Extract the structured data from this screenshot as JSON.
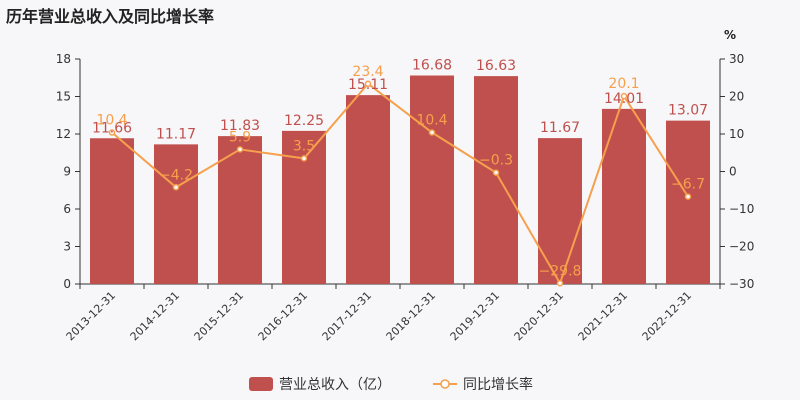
{
  "header": {
    "title": "历年营业总收入及同比增长率"
  },
  "colors": {
    "bar": "#c0504d",
    "line": "#f6a04d",
    "axis": "#333333",
    "tick": "#333333"
  },
  "chart_data": {
    "type": "bar",
    "title": "历年营业总收入及同比增长率",
    "categories": [
      "2013-12-31",
      "2014-12-31",
      "2015-12-31",
      "2016-12-31",
      "2017-12-31",
      "2018-12-31",
      "2019-12-31",
      "2020-12-31",
      "2021-12-31",
      "2022-12-31"
    ],
    "series": [
      {
        "name": "营业总收入（亿）",
        "type": "bar",
        "axis": "left",
        "values": [
          11.66,
          11.17,
          11.83,
          12.25,
          15.11,
          16.68,
          16.63,
          11.67,
          14.01,
          13.07
        ],
        "labels": [
          "11.66",
          "11.17",
          "11.83",
          "12.25",
          "15.11",
          "16.68",
          "16.63",
          "11.67",
          "14.01",
          "13.07"
        ]
      },
      {
        "name": "同比增长率",
        "type": "line",
        "axis": "right",
        "values": [
          10.4,
          -4.2,
          5.9,
          3.5,
          23.4,
          10.4,
          -0.3,
          -29.8,
          20.1,
          -6.7
        ],
        "labels": [
          "10.4",
          "−4.2",
          "5.9",
          "3.5",
          "23.4",
          "10.4",
          "−0.3",
          "−29.8",
          "20.1",
          "−6.7"
        ]
      }
    ],
    "y_left": {
      "ylim": [
        0,
        18
      ],
      "ticks": [
        "0",
        "3",
        "6",
        "9",
        "12",
        "15",
        "18"
      ]
    },
    "y_right": {
      "label": "%",
      "ylim": [
        -30,
        30
      ],
      "ticks": [
        "−30",
        "−20",
        "−10",
        "0",
        "10",
        "20",
        "30"
      ]
    },
    "legend": {
      "position": "bottom-center"
    },
    "grid": false
  }
}
